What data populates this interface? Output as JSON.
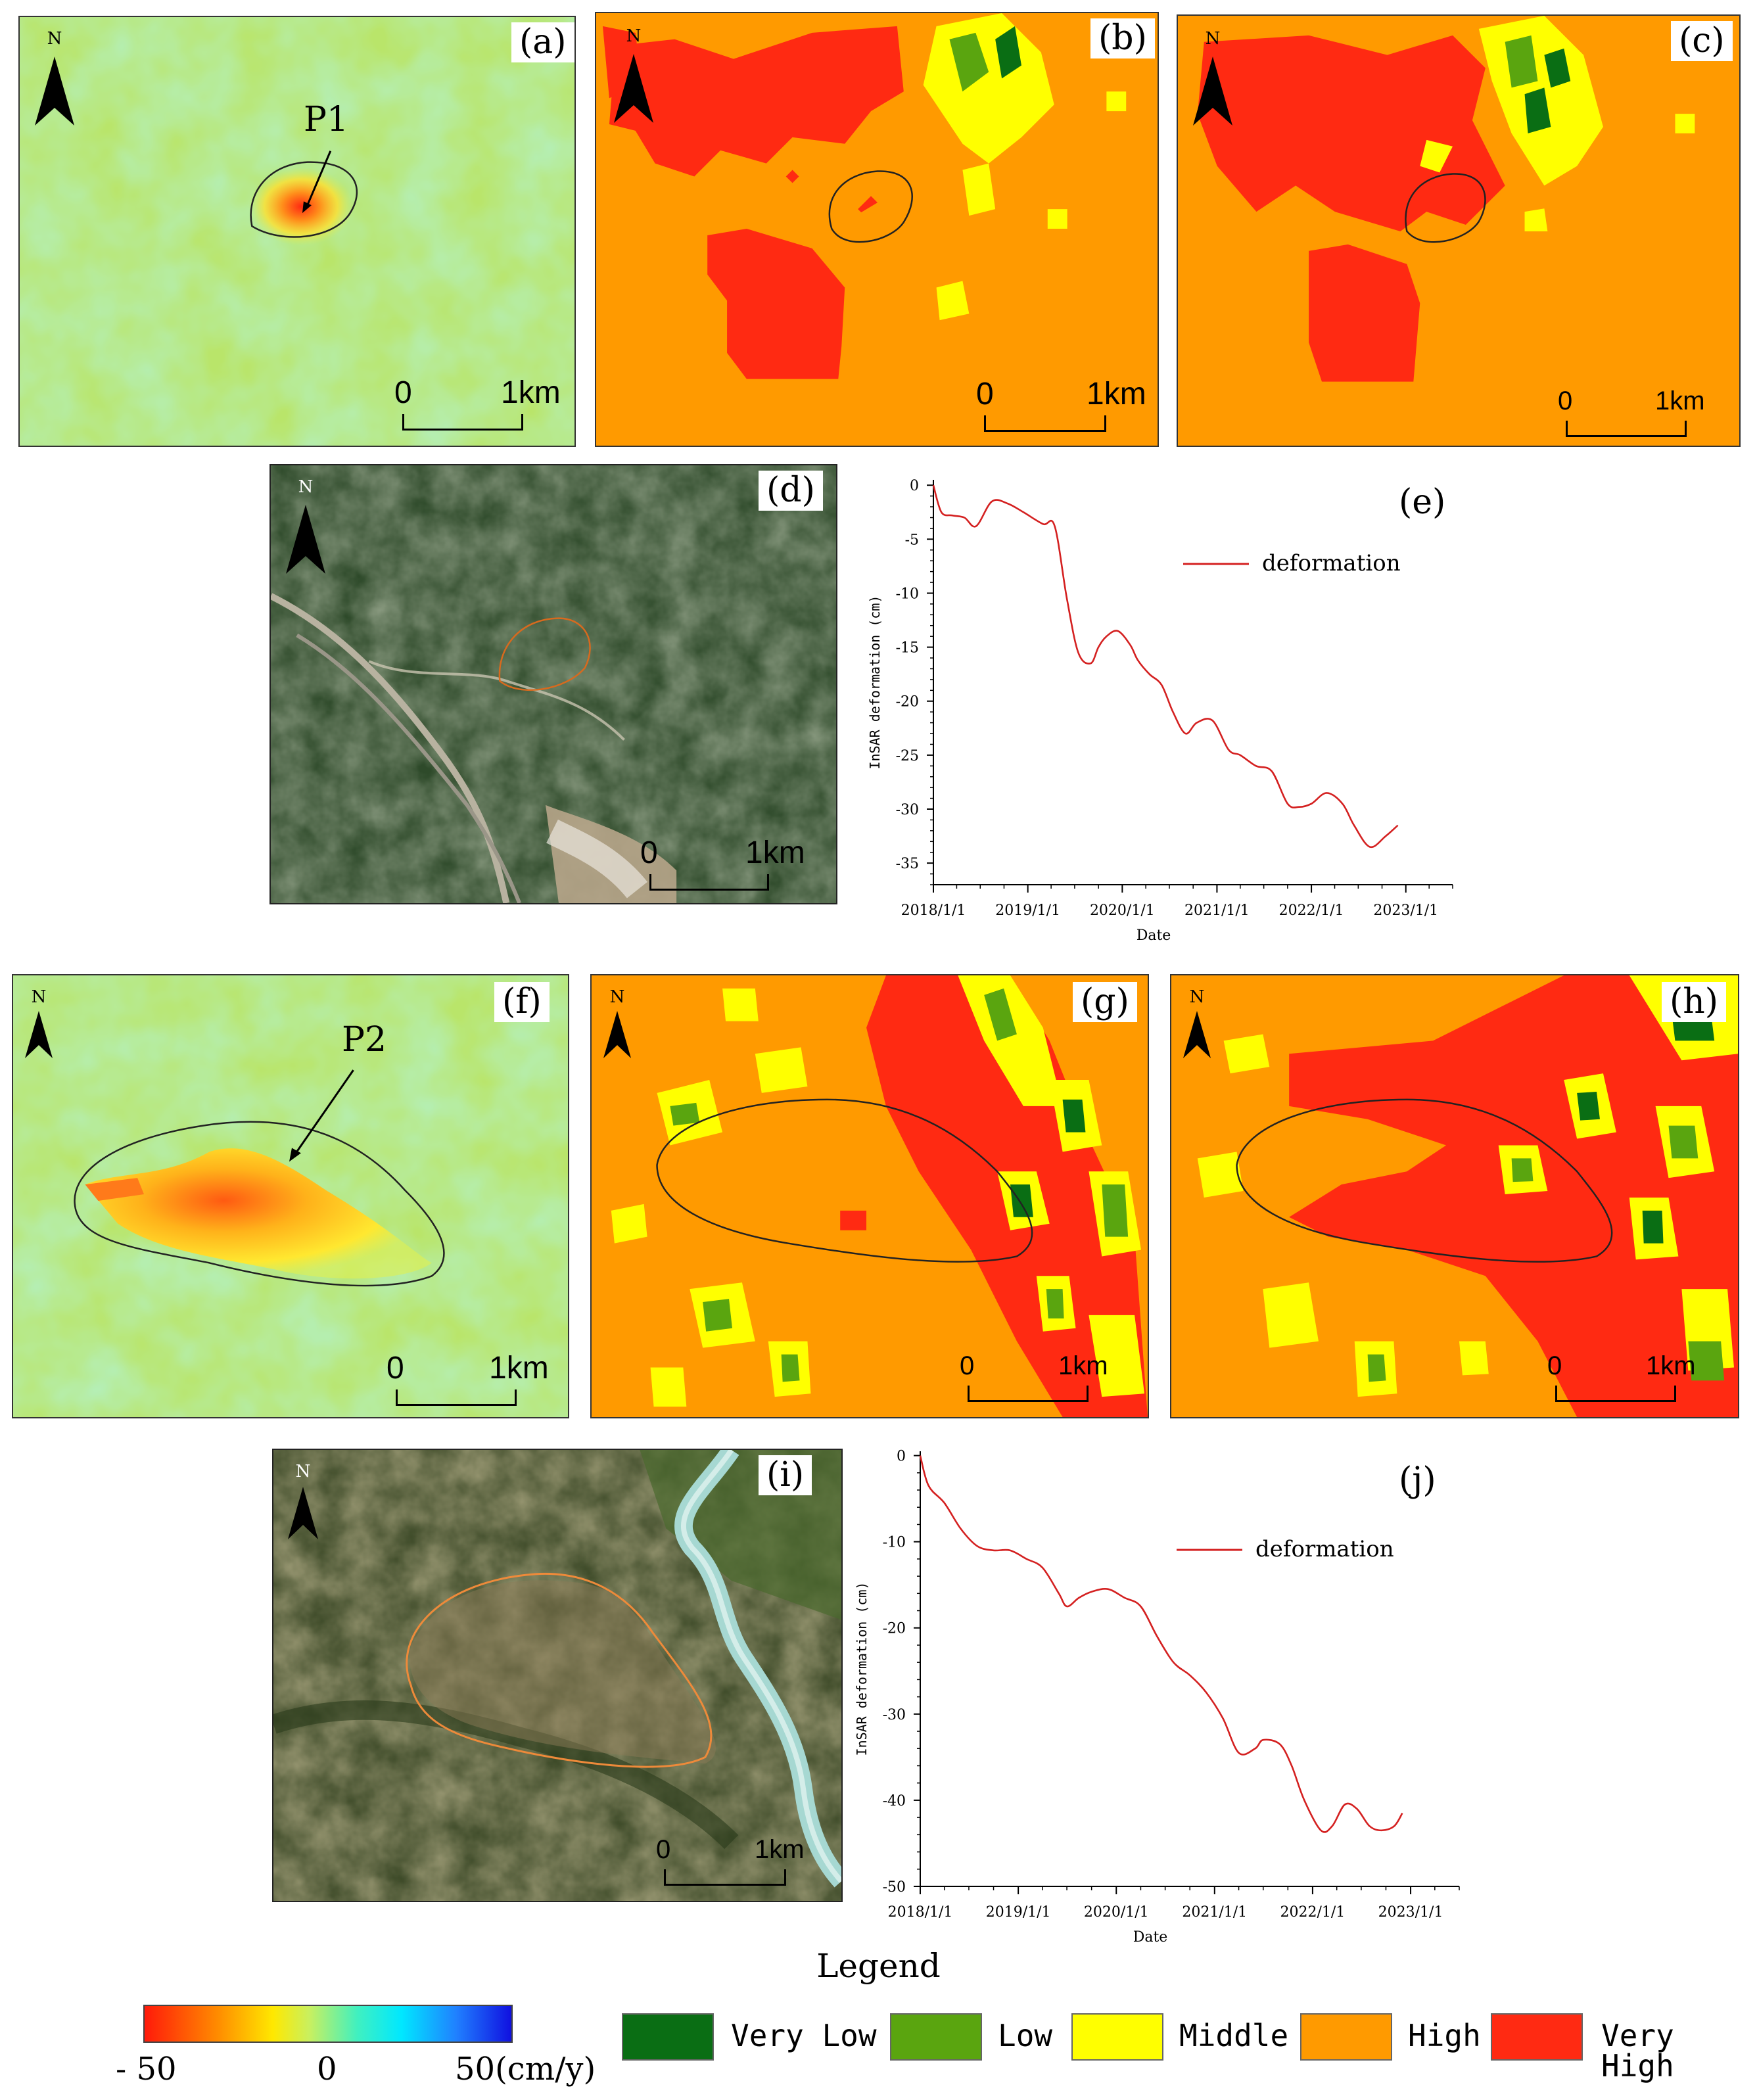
{
  "panels": {
    "a": {
      "label": "(a)"
    },
    "b": {
      "label": "(b)"
    },
    "c": {
      "label": "(c)"
    },
    "d": {
      "label": "(d)"
    },
    "e": {
      "label": "(e)"
    },
    "f": {
      "label": "(f)"
    },
    "g": {
      "label": "(g)"
    },
    "h": {
      "label": "(h)"
    },
    "i": {
      "label": "(i)"
    },
    "j": {
      "label": "(j)"
    }
  },
  "points": {
    "p1": "P1",
    "p2": "P2"
  },
  "north": "N",
  "scalebar": {
    "start": "0",
    "end": "1km"
  },
  "colors": {
    "very_low": "#0a6e14",
    "low": "#5aa50f",
    "middle": "#ffff00",
    "high": "#ff9a00",
    "very_high": "#ff2a12",
    "curve": "#d42020"
  },
  "legend": {
    "title": "Legend",
    "colorbar": {
      "min_label": "- 50",
      "mid_label": "0",
      "max_label": "50(cm/y)"
    },
    "classes": [
      {
        "label": "Very Low",
        "color": "#0a6e14"
      },
      {
        "label": "Low",
        "color": "#5aa50f"
      },
      {
        "label": "Middle",
        "color": "#ffff00"
      },
      {
        "label": "High",
        "color": "#ff9a00"
      },
      {
        "label": "Very High",
        "color": "#ff2a12"
      }
    ]
  },
  "chart_data": [
    {
      "type": "line",
      "panel": "(e)",
      "xlabel": "Date",
      "ylabel": "InSAR deformation (cm)",
      "x_ticks": [
        "2018/1/1",
        "2019/1/1",
        "2020/1/1",
        "2021/1/1",
        "2022/1/1",
        "2023/1/1"
      ],
      "y_ticks": [
        0,
        -5,
        -10,
        -15,
        -20,
        -25,
        -30,
        -35
      ],
      "ylim": [
        -37,
        0.5
      ],
      "xlim": [
        "2018-01-01",
        "2023-07-01"
      ],
      "legend_position": "top-right",
      "series": [
        {
          "name": "deformation",
          "x": [
            "2018-01-01",
            "2018-02-01",
            "2018-03-15",
            "2018-05-01",
            "2018-06-15",
            "2018-08-15",
            "2018-10-15",
            "2018-12-15",
            "2019-03-01",
            "2019-04-15",
            "2019-06-01",
            "2019-07-15",
            "2019-09-01",
            "2019-10-01",
            "2019-11-01",
            "2019-12-15",
            "2020-02-01",
            "2020-03-01",
            "2020-04-15",
            "2020-06-01",
            "2020-07-15",
            "2020-09-01",
            "2020-10-15",
            "2020-12-15",
            "2021-02-15",
            "2021-04-01",
            "2021-06-01",
            "2021-08-01",
            "2021-10-01",
            "2021-11-15",
            "2022-01-01",
            "2022-03-01",
            "2022-05-01",
            "2022-06-15",
            "2022-08-15",
            "2022-10-15",
            "2022-12-01"
          ],
          "values": [
            0,
            -2.5,
            -2.8,
            -3.0,
            -3.8,
            -1.5,
            -1.7,
            -2.5,
            -3.6,
            -3.8,
            -10.5,
            -15.5,
            -16.5,
            -15.0,
            -14.0,
            -13.5,
            -14.8,
            -16.2,
            -17.5,
            -18.5,
            -21.0,
            -23.0,
            -22.0,
            -21.8,
            -24.5,
            -25.0,
            -26.0,
            -26.5,
            -29.5,
            -29.8,
            -29.5,
            -28.5,
            -29.5,
            -31.5,
            -33.5,
            -32.5,
            -31.5
          ]
        }
      ]
    },
    {
      "type": "line",
      "panel": "(j)",
      "xlabel": "Date",
      "ylabel": "InSAR deformation (cm)",
      "x_ticks": [
        "2018/1/1",
        "2019/1/1",
        "2020/1/1",
        "2021/1/1",
        "2022/1/1",
        "2023/1/1"
      ],
      "y_ticks": [
        0,
        -10,
        -20,
        -30,
        -40,
        -50
      ],
      "ylim": [
        -50,
        0.5
      ],
      "xlim": [
        "2018-01-01",
        "2023-07-01"
      ],
      "legend_position": "top-right",
      "series": [
        {
          "name": "deformation",
          "x": [
            "2018-01-01",
            "2018-02-01",
            "2018-04-01",
            "2018-06-01",
            "2018-08-01",
            "2018-10-01",
            "2018-12-01",
            "2019-02-01",
            "2019-04-01",
            "2019-06-01",
            "2019-07-01",
            "2019-08-15",
            "2019-10-01",
            "2019-12-01",
            "2020-02-01",
            "2020-04-01",
            "2020-06-01",
            "2020-08-01",
            "2020-10-01",
            "2020-12-01",
            "2021-02-01",
            "2021-04-01",
            "2021-06-01",
            "2021-07-01",
            "2021-09-01",
            "2021-10-15",
            "2021-12-01",
            "2022-02-01",
            "2022-03-15",
            "2022-05-01",
            "2022-06-15",
            "2022-08-01",
            "2022-09-15",
            "2022-11-01",
            "2022-12-01"
          ],
          "values": [
            0,
            -3.5,
            -5.5,
            -8.5,
            -10.5,
            -11.0,
            -11.0,
            -12.0,
            -13.0,
            -16.0,
            -17.5,
            -16.5,
            -15.8,
            -15.5,
            -16.5,
            -17.5,
            -21.0,
            -24.0,
            -25.5,
            -27.5,
            -30.5,
            -34.5,
            -34.0,
            -33.0,
            -33.5,
            -36.0,
            -40.0,
            -43.5,
            -43.0,
            -40.5,
            -41.0,
            -43.0,
            -43.5,
            -43.0,
            -41.5
          ]
        }
      ]
    }
  ]
}
